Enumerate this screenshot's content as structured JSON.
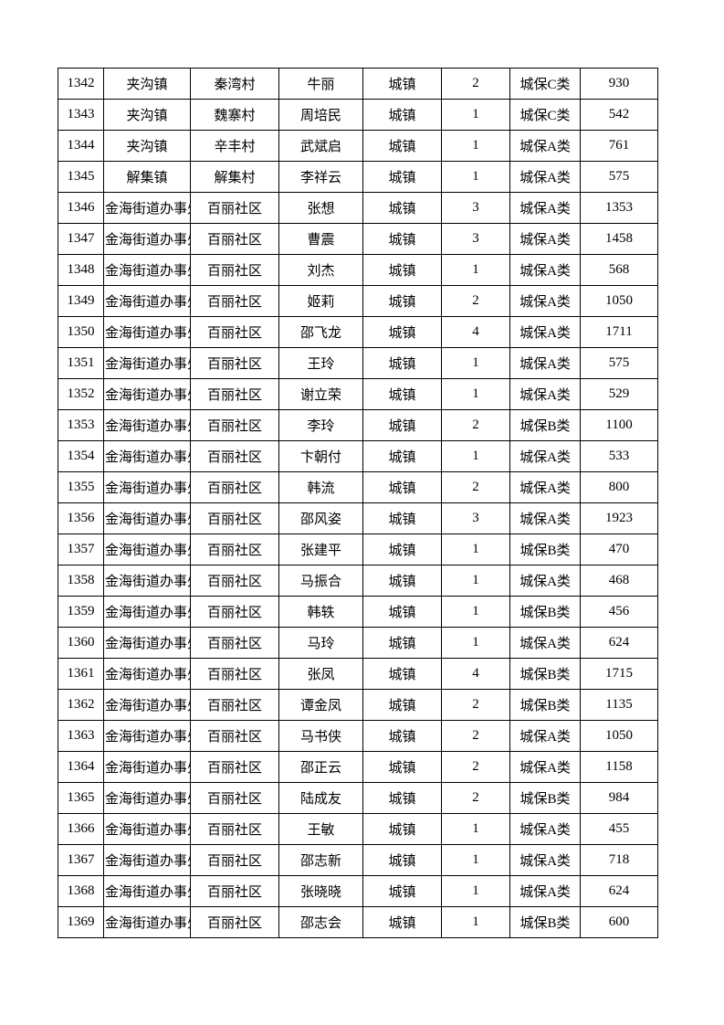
{
  "page": {
    "background_color": "#ffffff",
    "text_color": "#000000",
    "border_color": "#000000"
  },
  "table": {
    "columns": [
      {
        "key": "serial"
      },
      {
        "key": "town"
      },
      {
        "key": "village"
      },
      {
        "key": "person-name"
      },
      {
        "key": "area-type"
      },
      {
        "key": "count"
      },
      {
        "key": "category"
      },
      {
        "key": "amount"
      }
    ],
    "rows": [
      [
        "1342",
        "夹沟镇",
        "秦湾村",
        "牛丽",
        "城镇",
        "2",
        "城保C类",
        "930"
      ],
      [
        "1343",
        "夹沟镇",
        "魏寨村",
        "周培民",
        "城镇",
        "1",
        "城保C类",
        "542"
      ],
      [
        "1344",
        "夹沟镇",
        "辛丰村",
        "武斌启",
        "城镇",
        "1",
        "城保A类",
        "761"
      ],
      [
        "1345",
        "解集镇",
        "解集村",
        "李祥云",
        "城镇",
        "1",
        "城保A类",
        "575"
      ],
      [
        "1346",
        "金海街道办事处",
        "百丽社区",
        "张想",
        "城镇",
        "3",
        "城保A类",
        "1353"
      ],
      [
        "1347",
        "金海街道办事处",
        "百丽社区",
        "曹震",
        "城镇",
        "3",
        "城保A类",
        "1458"
      ],
      [
        "1348",
        "金海街道办事处",
        "百丽社区",
        "刘杰",
        "城镇",
        "1",
        "城保A类",
        "568"
      ],
      [
        "1349",
        "金海街道办事处",
        "百丽社区",
        "姬莉",
        "城镇",
        "2",
        "城保A类",
        "1050"
      ],
      [
        "1350",
        "金海街道办事处",
        "百丽社区",
        "邵飞龙",
        "城镇",
        "4",
        "城保A类",
        "1711"
      ],
      [
        "1351",
        "金海街道办事处",
        "百丽社区",
        "王玲",
        "城镇",
        "1",
        "城保A类",
        "575"
      ],
      [
        "1352",
        "金海街道办事处",
        "百丽社区",
        "谢立荣",
        "城镇",
        "1",
        "城保A类",
        "529"
      ],
      [
        "1353",
        "金海街道办事处",
        "百丽社区",
        "李玲",
        "城镇",
        "2",
        "城保B类",
        "1100"
      ],
      [
        "1354",
        "金海街道办事处",
        "百丽社区",
        "卞朝付",
        "城镇",
        "1",
        "城保A类",
        "533"
      ],
      [
        "1355",
        "金海街道办事处",
        "百丽社区",
        "韩流",
        "城镇",
        "2",
        "城保A类",
        "800"
      ],
      [
        "1356",
        "金海街道办事处",
        "百丽社区",
        "邵风姿",
        "城镇",
        "3",
        "城保A类",
        "1923"
      ],
      [
        "1357",
        "金海街道办事处",
        "百丽社区",
        "张建平",
        "城镇",
        "1",
        "城保B类",
        "470"
      ],
      [
        "1358",
        "金海街道办事处",
        "百丽社区",
        "马振合",
        "城镇",
        "1",
        "城保A类",
        "468"
      ],
      [
        "1359",
        "金海街道办事处",
        "百丽社区",
        "韩轶",
        "城镇",
        "1",
        "城保B类",
        "456"
      ],
      [
        "1360",
        "金海街道办事处",
        "百丽社区",
        "马玲",
        "城镇",
        "1",
        "城保A类",
        "624"
      ],
      [
        "1361",
        "金海街道办事处",
        "百丽社区",
        "张凤",
        "城镇",
        "4",
        "城保B类",
        "1715"
      ],
      [
        "1362",
        "金海街道办事处",
        "百丽社区",
        "谭金凤",
        "城镇",
        "2",
        "城保B类",
        "1135"
      ],
      [
        "1363",
        "金海街道办事处",
        "百丽社区",
        "马书侠",
        "城镇",
        "2",
        "城保A类",
        "1050"
      ],
      [
        "1364",
        "金海街道办事处",
        "百丽社区",
        "邵正云",
        "城镇",
        "2",
        "城保A类",
        "1158"
      ],
      [
        "1365",
        "金海街道办事处",
        "百丽社区",
        "陆成友",
        "城镇",
        "2",
        "城保B类",
        "984"
      ],
      [
        "1366",
        "金海街道办事处",
        "百丽社区",
        "王敏",
        "城镇",
        "1",
        "城保A类",
        "455"
      ],
      [
        "1367",
        "金海街道办事处",
        "百丽社区",
        "邵志新",
        "城镇",
        "1",
        "城保A类",
        "718"
      ],
      [
        "1368",
        "金海街道办事处",
        "百丽社区",
        "张晓晓",
        "城镇",
        "1",
        "城保A类",
        "624"
      ],
      [
        "1369",
        "金海街道办事处",
        "百丽社区",
        "邵志会",
        "城镇",
        "1",
        "城保B类",
        "600"
      ]
    ]
  }
}
